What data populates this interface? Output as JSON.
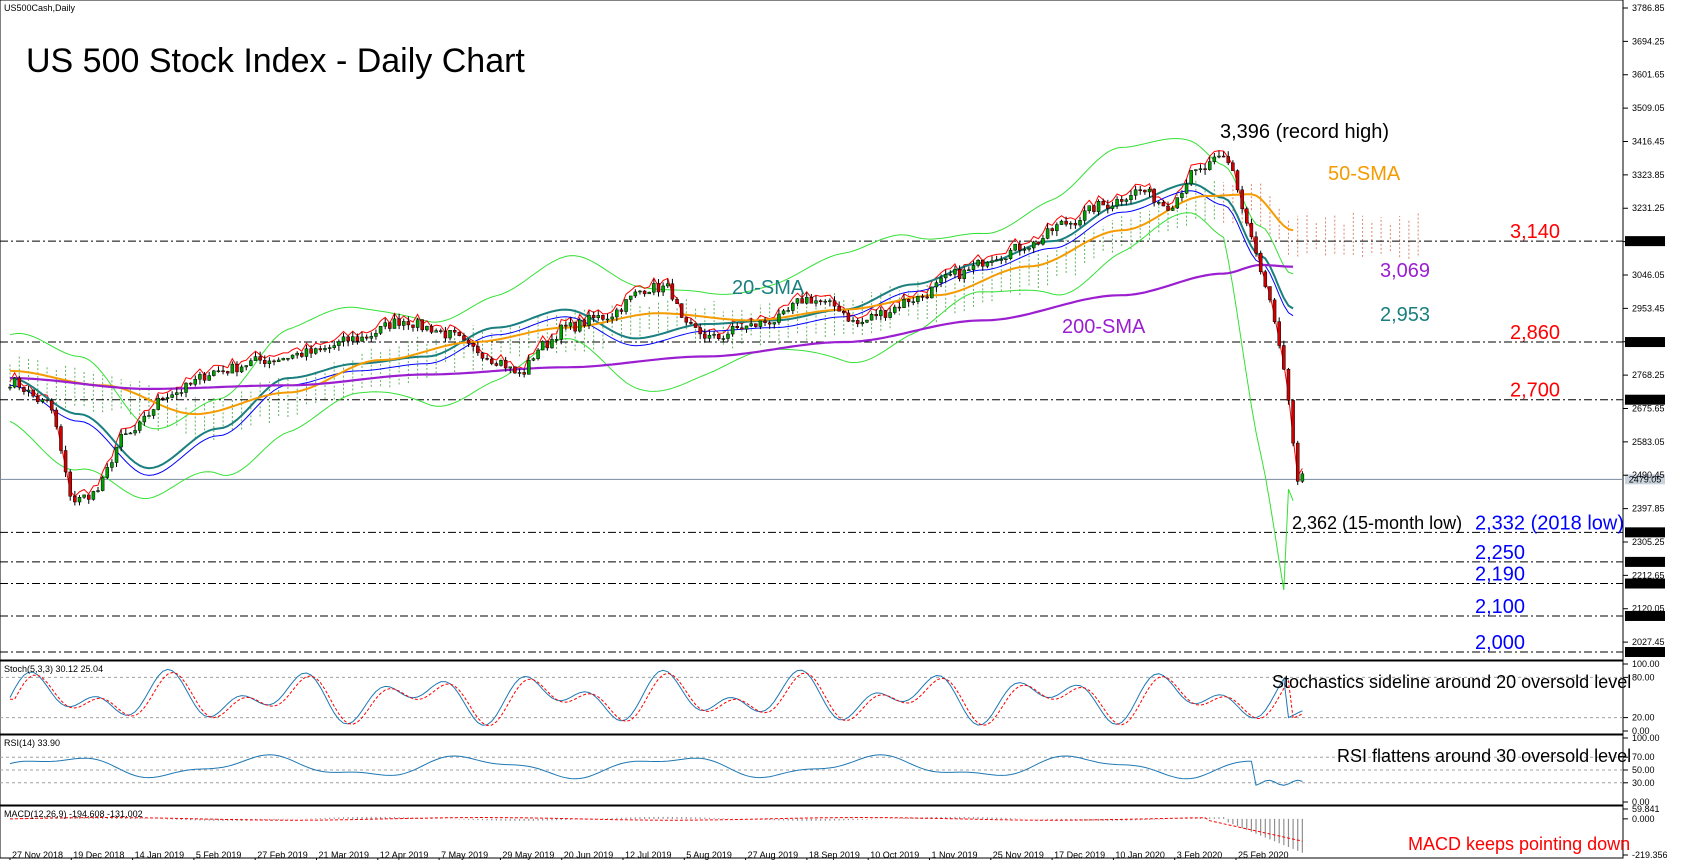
{
  "window": {
    "symbol_label": "US500Cash,Daily"
  },
  "title": "US 500 Stock Index - Daily Chart",
  "colors": {
    "up_candle": "#00a000",
    "down_candle": "#d00000",
    "sma20": "#1a7f7f",
    "sma50": "#f59b00",
    "sma200": "#9b1fd1",
    "bollinger": "#35e035",
    "tenkan": "#ff0000",
    "kijun": "#0000ff",
    "cloud_up": "#3aa03a",
    "cloud_down": "#d06a4a",
    "level_red": "#ff0000",
    "level_blue": "#0000ff",
    "osc_main": "#1e78b4",
    "osc_signal": "#ff0000"
  },
  "chart_data": [
    {
      "type": "candlestick",
      "panel": "price",
      "ylim": [
        2000,
        3786.85
      ],
      "y_ticks": [
        "3786.85",
        "3694.25",
        "3601.65",
        "3509.05",
        "3416.45",
        "3323.85",
        "3231.25",
        "3138.65",
        "3046.05",
        "2953.45",
        "2860.85",
        "2768.25",
        "2675.65",
        "2583.05",
        "2490.45",
        "2397.85",
        "2305.25",
        "2212.65",
        "2120.05",
        "2027.45"
      ],
      "x_dates": [
        "27 Nov 2018",
        "19 Dec 2018",
        "14 Jan 2019",
        "5 Feb 2019",
        "27 Feb 2019",
        "21 Mar 2019",
        "12 Apr 2019",
        "7 May 2019",
        "29 May 2019",
        "20 Jun 2019",
        "12 Jul 2019",
        "5 Aug 2019",
        "27 Aug 2019",
        "18 Sep 2019",
        "10 Oct 2019",
        "1 Nov 2019",
        "25 Nov 2019",
        "17 Dec 2019",
        "10 Jan 2020",
        "3 Feb 2020",
        "25 Feb 2020"
      ],
      "series": [
        {
          "name": "20-SMA",
          "anchors": [
            [
              0,
              2760
            ],
            [
              15,
              2660
            ],
            [
              30,
              2510
            ],
            [
              45,
              2620
            ],
            [
              60,
              2760
            ],
            [
              75,
              2800
            ],
            [
              90,
              2820
            ],
            [
              105,
              2900
            ],
            [
              120,
              2950
            ],
            [
              135,
              2870
            ],
            [
              150,
              2910
            ],
            [
              165,
              2920
            ],
            [
              180,
              2950
            ],
            [
              195,
              3020
            ],
            [
              210,
              3080
            ],
            [
              225,
              3140
            ],
            [
              240,
              3240
            ],
            [
              255,
              3300
            ],
            [
              262,
              3260
            ],
            [
              270,
              3100
            ],
            [
              277,
              2953
            ]
          ]
        },
        {
          "name": "50-SMA",
          "anchors": [
            [
              0,
              2780
            ],
            [
              20,
              2740
            ],
            [
              40,
              2660
            ],
            [
              60,
              2720
            ],
            [
              80,
              2810
            ],
            [
              100,
              2860
            ],
            [
              120,
              2900
            ],
            [
              140,
              2940
            ],
            [
              160,
              2920
            ],
            [
              180,
              2950
            ],
            [
              200,
              2990
            ],
            [
              220,
              3070
            ],
            [
              240,
              3170
            ],
            [
              258,
              3265
            ],
            [
              268,
              3270
            ],
            [
              277,
              3170
            ]
          ]
        },
        {
          "name": "200-SMA",
          "anchors": [
            [
              0,
              2760
            ],
            [
              30,
              2730
            ],
            [
              60,
              2740
            ],
            [
              90,
              2770
            ],
            [
              120,
              2790
            ],
            [
              150,
              2820
            ],
            [
              180,
              2860
            ],
            [
              210,
              2920
            ],
            [
              240,
              2990
            ],
            [
              262,
              3050
            ],
            [
              270,
              3074
            ],
            [
              277,
              3069
            ]
          ]
        }
      ],
      "ohlc_anchors": [
        [
          0,
          2750
        ],
        [
          8,
          2690
        ],
        [
          14,
          2420
        ],
        [
          18,
          2440
        ],
        [
          25,
          2600
        ],
        [
          35,
          2720
        ],
        [
          45,
          2780
        ],
        [
          55,
          2810
        ],
        [
          65,
          2830
        ],
        [
          75,
          2870
        ],
        [
          85,
          2920
        ],
        [
          90,
          2900
        ],
        [
          95,
          2880
        ],
        [
          100,
          2840
        ],
        [
          105,
          2810
        ],
        [
          110,
          2770
        ],
        [
          115,
          2850
        ],
        [
          120,
          2900
        ],
        [
          128,
          2930
        ],
        [
          138,
          3010
        ],
        [
          142,
          3010
        ],
        [
          146,
          2900
        ],
        [
          152,
          2870
        ],
        [
          158,
          2900
        ],
        [
          165,
          2920
        ],
        [
          172,
          2980
        ],
        [
          178,
          2960
        ],
        [
          183,
          2910
        ],
        [
          188,
          2940
        ],
        [
          195,
          2980
        ],
        [
          205,
          3050
        ],
        [
          213,
          3100
        ],
        [
          220,
          3130
        ],
        [
          228,
          3190
        ],
        [
          236,
          3240
        ],
        [
          244,
          3280
        ],
        [
          250,
          3240
        ],
        [
          256,
          3330
        ],
        [
          262,
          3370
        ],
        [
          264,
          3340
        ],
        [
          266,
          3230
        ],
        [
          268,
          3150
        ],
        [
          270,
          3050
        ],
        [
          272,
          2970
        ],
        [
          274,
          2840
        ],
        [
          276,
          2700
        ],
        [
          278,
          2460
        ],
        [
          279,
          2480
        ]
      ],
      "levels": [
        {
          "price": 3140,
          "label": "3,140",
          "axis_box": "3140.00",
          "color": "red"
        },
        {
          "price": 2860,
          "label": "2,860",
          "axis_box": "2858.50",
          "color": "red"
        },
        {
          "price": 2700,
          "label": "2,700",
          "axis_box": "2700.00",
          "color": "red"
        },
        {
          "price": 2332,
          "label": "2,332 (2018 low)",
          "axis_box": "2332.10",
          "color": "blue"
        },
        {
          "price": 2250,
          "label": "2,250",
          "axis_box": "2250.00",
          "color": "blue"
        },
        {
          "price": 2190,
          "label": "2,190",
          "axis_box": "2190.00",
          "color": "blue"
        },
        {
          "price": 2100,
          "label": "2,100",
          "axis_box": "2100.00",
          "color": "blue"
        },
        {
          "price": 2000,
          "label": "2,000",
          "axis_box": "2000.00",
          "color": "blue"
        }
      ],
      "current_price": {
        "price": 2479.05,
        "axis_box": "2479.05"
      },
      "annotations": [
        {
          "text": "3,396 (record high)"
        },
        {
          "text": "50-SMA"
        },
        {
          "text": "20-SMA"
        },
        {
          "text": "200-SMA"
        },
        {
          "text": "3,069"
        },
        {
          "text": "2,953"
        },
        {
          "text": "2,362 (15-month low)"
        }
      ]
    },
    {
      "type": "line",
      "panel": "stochastic",
      "label": "Stoch(5,3,3) 30.12 25.04",
      "ylim": [
        0,
        100
      ],
      "y_ticks": [
        "100.00",
        "80.00",
        "20.00",
        "0.00"
      ],
      "levels": [
        80,
        20
      ],
      "last_value": 30.12,
      "annotation": "Stochastics sideline around 20 oversold level"
    },
    {
      "type": "line",
      "panel": "rsi",
      "label": "RSI(14) 33.90",
      "ylim": [
        0,
        100
      ],
      "y_ticks": [
        "100.00",
        "70.00",
        "50.00",
        "30.00",
        "0.00"
      ],
      "levels": [
        70,
        50,
        30
      ],
      "last_value": 33.9,
      "annotation": "RSI flattens around 30 oversold level"
    },
    {
      "type": "bar",
      "panel": "macd",
      "label": "MACD(12,26,9) -194.608 -131.002",
      "y_ticks": [
        "59.841",
        "0.000",
        "-219.356"
      ],
      "ylim": [
        -219.356,
        59.841
      ],
      "annotation": "MACD keeps pointing down"
    }
  ]
}
